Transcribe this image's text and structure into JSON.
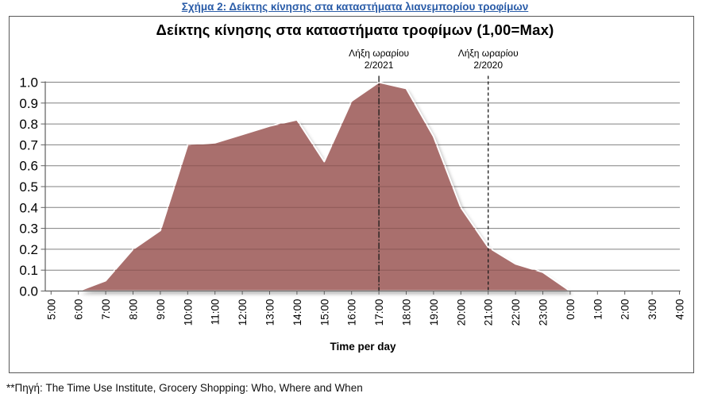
{
  "figure_caption": "Σχήμα 2: Δείκτης κίνησης στα καταστήματα λιανεμπορίου τροφίμων",
  "source_note": "**Πηγή: The Time Use Institute, Grocery Shopping: Who, Where and When",
  "colors": {
    "area_fill": "#a96f6d",
    "gridline": "#808080",
    "gridline_inside_area": "#8d5856",
    "axis": "#5f5f5f",
    "caption_blue": "#2a5ca8",
    "annotation_line": "#1a1a1a"
  },
  "chart_data": {
    "type": "area",
    "title": "Δείκτης κίνησης στα καταστήματα τροφίμων (1,00=Max)",
    "xlabel": "Time per day",
    "ylabel": "",
    "ylim": [
      0.0,
      1.0
    ],
    "grid": true,
    "y_ticks_top_to_bottom": [
      "1.0",
      "0.9",
      "0.8",
      "0.7",
      "0.6",
      "0.5",
      "0.4",
      "0.3",
      "0.2",
      "0.1",
      "0.0"
    ],
    "categories": [
      "5:00",
      "6:00",
      "7:00",
      "8:00",
      "9:00",
      "10:00",
      "11:00",
      "12:00",
      "13:00",
      "14:00",
      "15:00",
      "16:00",
      "17:00",
      "18:00",
      "19:00",
      "20:00",
      "21:00",
      "22:00",
      "23:00",
      "0:00",
      "1:00",
      "2:00",
      "3:00",
      "4:00"
    ],
    "series": [
      {
        "name": "Δείκτης κίνησης στα καταστήματα τροφίμων",
        "values": [
          0.0,
          0.0,
          0.05,
          0.2,
          0.29,
          0.7,
          0.71,
          0.75,
          0.79,
          0.82,
          0.62,
          0.91,
          1.0,
          0.97,
          0.74,
          0.4,
          0.21,
          0.13,
          0.09,
          0.0,
          0.0,
          0.0,
          0.0,
          0.0
        ]
      }
    ],
    "annotations": [
      {
        "line1": "Λήξη ωραρίου",
        "line2": "2/2021",
        "x_category": "17:00",
        "line_style": "dash-dot"
      },
      {
        "line1": "Λήξη ωραρίου",
        "line2": "2/2020",
        "x_category": "21:00",
        "line_style": "dashed"
      }
    ]
  }
}
